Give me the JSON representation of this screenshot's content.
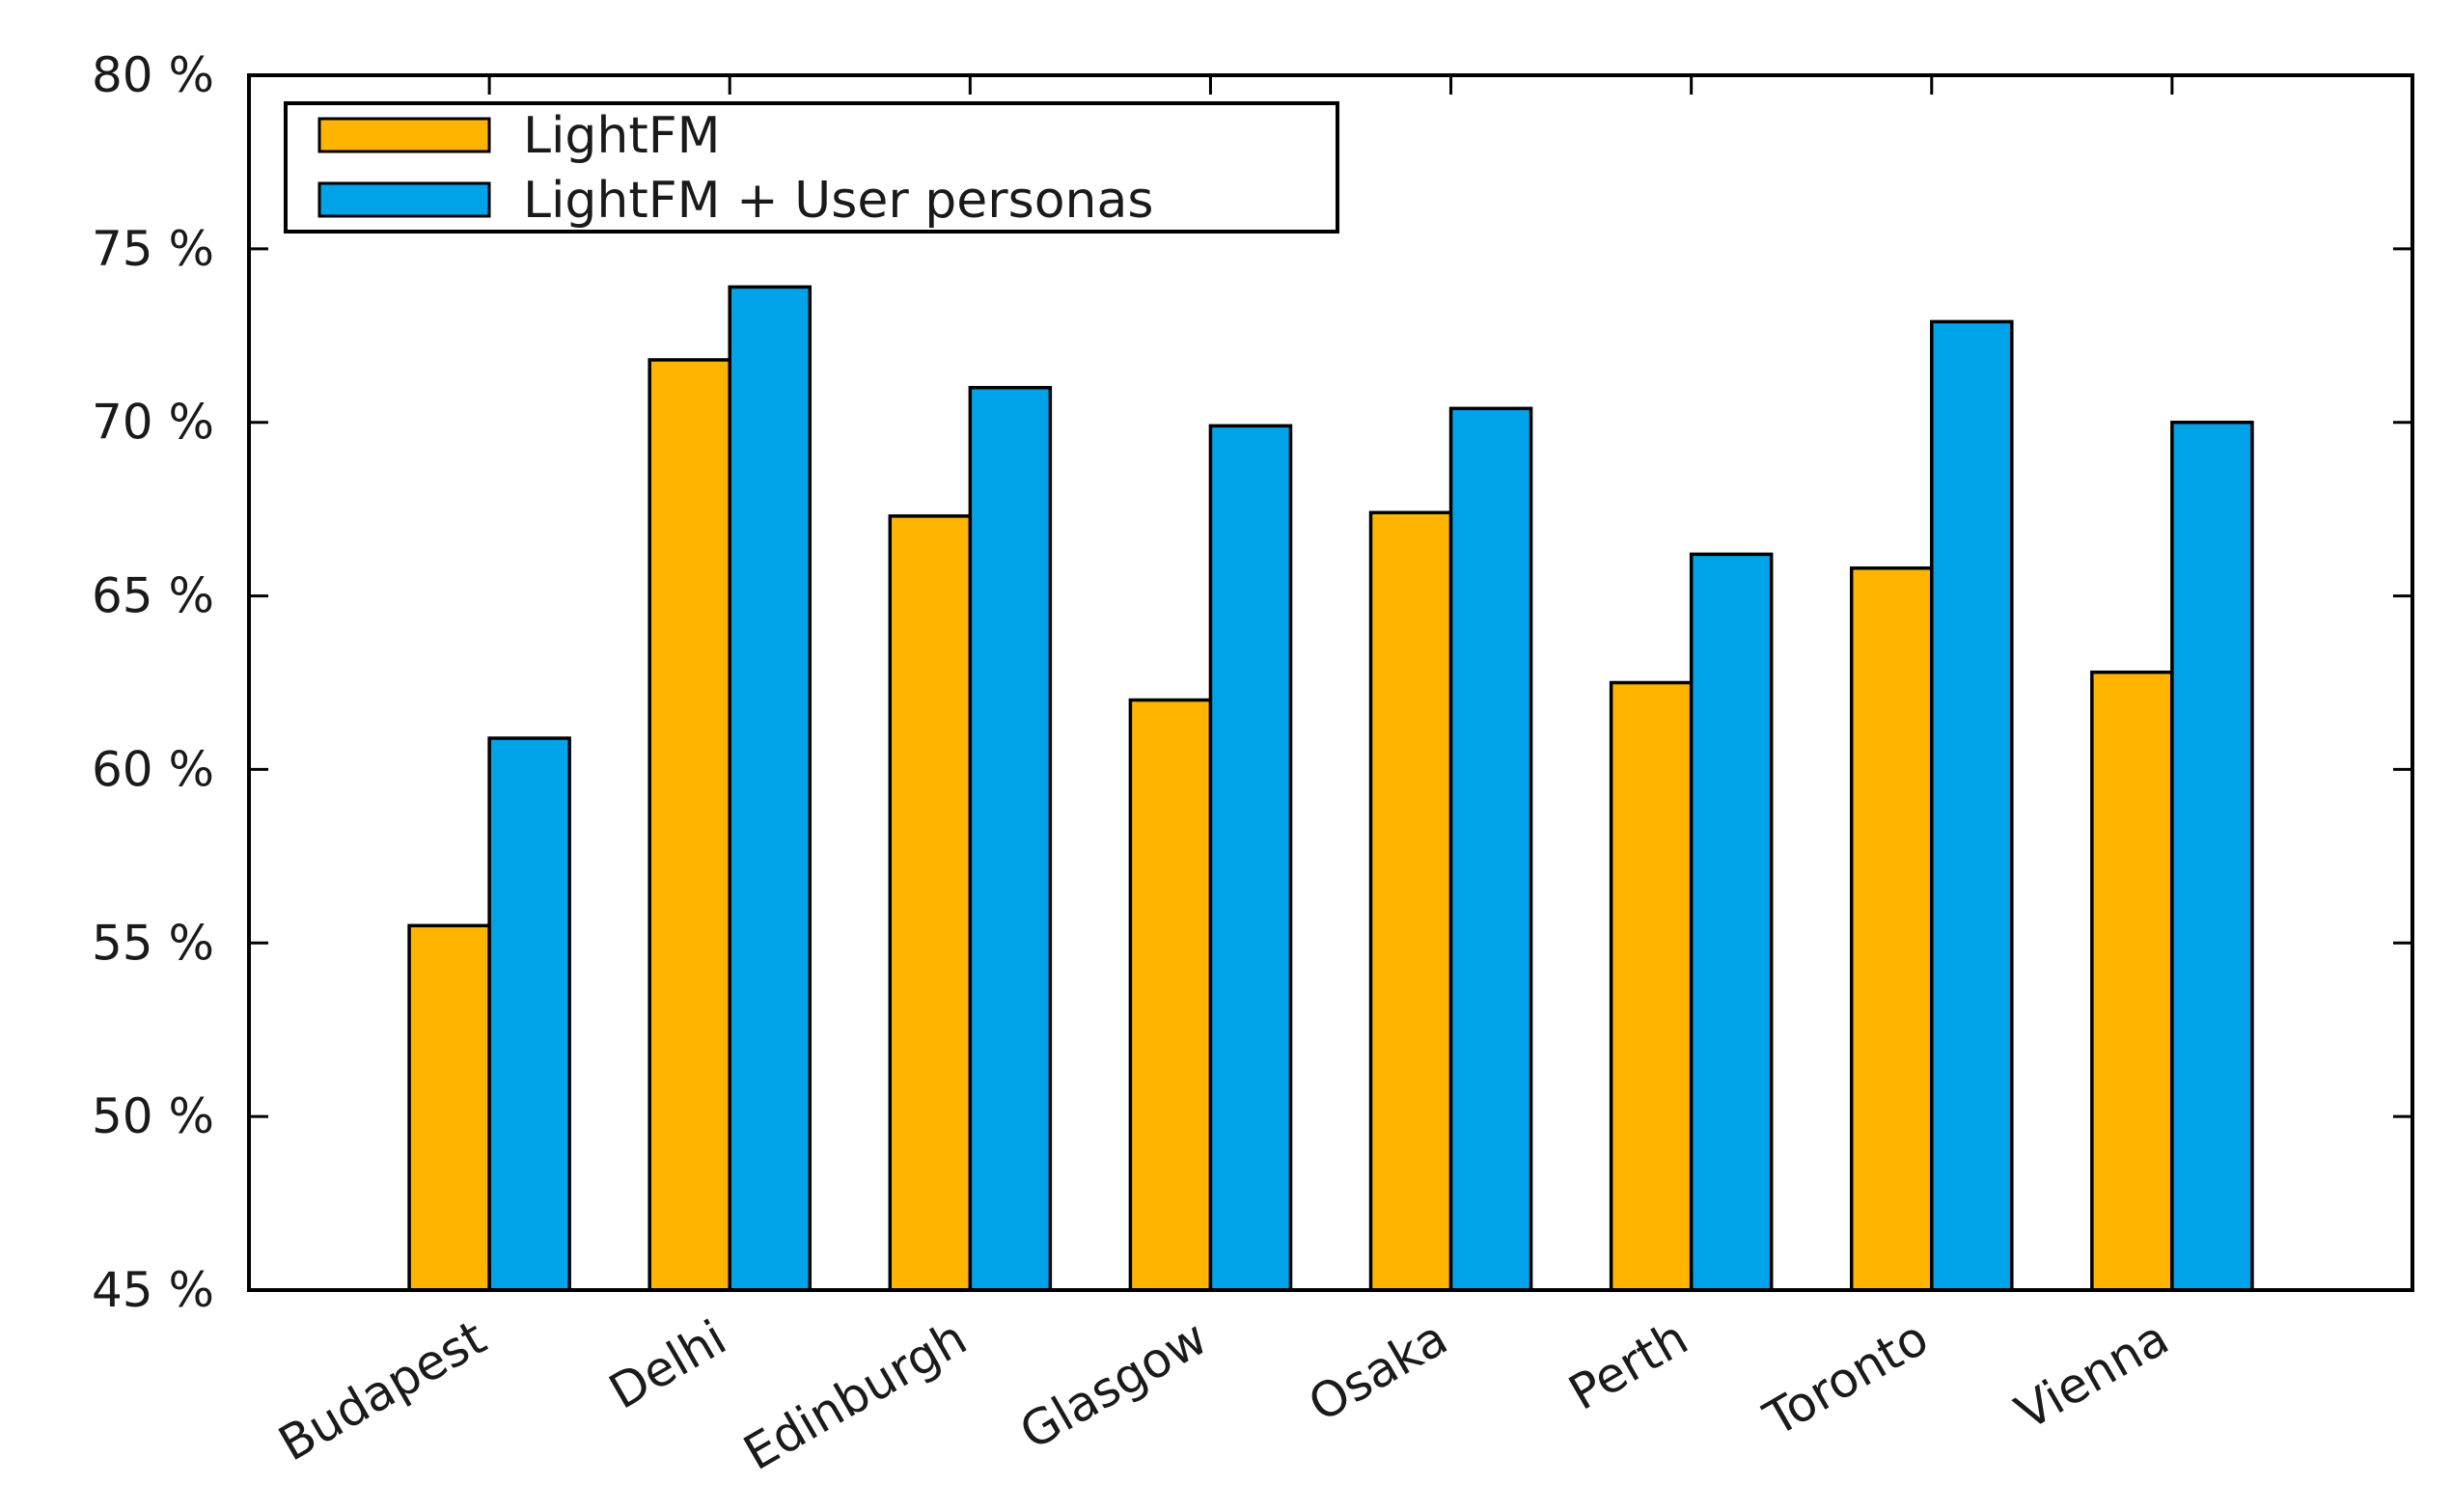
{
  "chart_data": {
    "type": "bar",
    "title": "",
    "xlabel": "",
    "ylabel": "",
    "ylim": [
      45,
      80
    ],
    "yticks": [
      45,
      50,
      55,
      60,
      65,
      70,
      75,
      80
    ],
    "ytick_suffix": " %",
    "yticks_text": [
      "45 %",
      "50 %",
      "55 %",
      "60 %",
      "65 %",
      "70 %",
      "75 %",
      "80 %"
    ],
    "categories": [
      "Budapest",
      "Delhi",
      "Edinburgh",
      "Glasgow",
      "Osaka",
      "Perth",
      "Toronto",
      "Vienna"
    ],
    "series": [
      {
        "name": "LightFM",
        "color": "#FFB400",
        "values": [
          55.5,
          71.8,
          67.3,
          62.0,
          67.4,
          62.5,
          65.8,
          62.8
        ]
      },
      {
        "name": "LightFM + User personas",
        "color": "#00A2E8",
        "values": [
          60.9,
          73.9,
          71.0,
          69.9,
          70.4,
          66.2,
          72.9,
          70.0
        ]
      }
    ],
    "legend_position": "top-left",
    "grid": false
  }
}
